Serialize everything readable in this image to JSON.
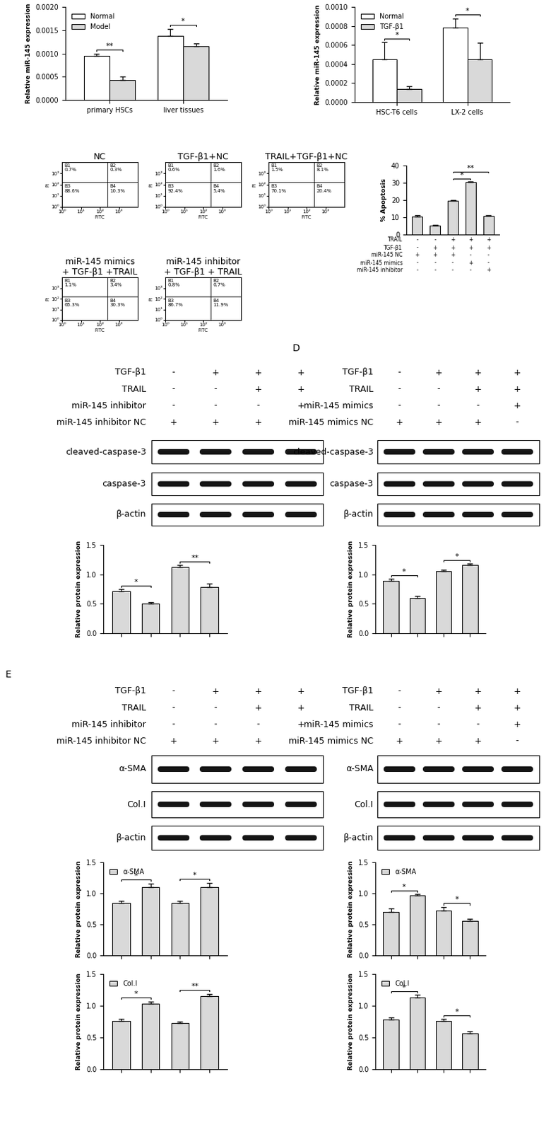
{
  "chart_data": [
    {
      "type": "bar",
      "ylabel": "Relative miR-145 expression",
      "categories": [
        "primary HSCs",
        "liver tissues"
      ],
      "series": [
        {
          "name": "Normal",
          "color": "#ffffff",
          "values": [
            0.00095,
            0.00138
          ],
          "errors": [
            5e-05,
            0.00015
          ]
        },
        {
          "name": "Model",
          "color": "#d9d9d9",
          "values": [
            0.00043,
            0.00115
          ],
          "errors": [
            7e-05,
            6e-05
          ]
        }
      ],
      "ylim": [
        0,
        0.002
      ],
      "yticks": [
        {
          "value": 0,
          "label": "0.0000"
        },
        {
          "value": 0.0005,
          "label": "0.0005"
        },
        {
          "value": 0.001,
          "label": "0.0010"
        },
        {
          "value": 0.0015,
          "label": "0.0015"
        },
        {
          "value": 0.002,
          "label": "0.0020"
        }
      ],
      "legend": "upper left",
      "significance": [
        "**",
        "*"
      ]
    },
    {
      "type": "bar",
      "ylabel": "Relative miR-145 expression",
      "categories": [
        "HSC-T6 cells",
        "LX-2 cells"
      ],
      "series": [
        {
          "name": "Normal",
          "color": "#ffffff",
          "values": [
            0.00045,
            0.00078
          ],
          "errors": [
            0.00018,
            0.0001
          ]
        },
        {
          "name": "TGF-β1",
          "color": "#d9d9d9",
          "values": [
            0.00014,
            0.00045
          ],
          "errors": [
            3e-05,
            0.00017
          ]
        }
      ],
      "ylim": [
        0,
        0.001
      ],
      "yticks": [
        {
          "value": 0,
          "label": "0.0000"
        },
        {
          "value": 0.0002,
          "label": "0.0002"
        },
        {
          "value": 0.0004,
          "label": "0.0004"
        },
        {
          "value": 0.0006,
          "label": "0.0006"
        },
        {
          "value": 0.0008,
          "label": "0.0008"
        },
        {
          "value": 0.001,
          "label": "0.0010"
        }
      ],
      "legend": "upper left",
      "significance": [
        "*",
        "*"
      ]
    },
    {
      "type": "bar",
      "ylabel": "% Apoptosis",
      "color": "#d9d9d9",
      "values": [
        10.5,
        5.2,
        19.5,
        30.3,
        10.8
      ],
      "errors": [
        0.8,
        0.5,
        0.5,
        0.7,
        0.6
      ],
      "ylim": [
        0,
        40
      ],
      "yticks": [
        0,
        10,
        20,
        30,
        40
      ],
      "conditions": [
        {
          "name": "TRAIL",
          "signs": [
            "-",
            "-",
            "+",
            "+",
            "+"
          ]
        },
        {
          "name": "TGF-β1",
          "signs": [
            "-",
            "+",
            "+",
            "+",
            "+"
          ]
        },
        {
          "name": "miR-145 NC",
          "signs": [
            "+",
            "+",
            "+",
            "-",
            "-"
          ]
        },
        {
          "name": "miR-145 mimics",
          "signs": [
            "-",
            "-",
            "-",
            "+",
            "-"
          ]
        },
        {
          "name": "miR-145 inhibitor",
          "signs": [
            "-",
            "-",
            "-",
            "-",
            "+"
          ]
        }
      ],
      "significance": [
        {
          "bars": [
            2,
            3
          ],
          "label": "*"
        },
        {
          "bars": [
            2,
            4
          ],
          "label": "**"
        }
      ]
    }
  ],
  "flow_cytometry": {
    "type": "quadrant",
    "log": true,
    "xlabel": "FITC",
    "ylabel": "PI",
    "xlim": [
      1,
      10000
    ],
    "ylim": [
      1,
      10000
    ],
    "xticks": [
      {
        "value": 1,
        "label": "10⁰"
      },
      {
        "value": 10,
        "label": "10¹"
      },
      {
        "value": 100,
        "label": "10²"
      },
      {
        "value": 1000,
        "label": "10³"
      }
    ],
    "yticks": [
      {
        "value": 1,
        "label": "10⁰"
      },
      {
        "value": 10,
        "label": "10¹"
      },
      {
        "value": 100,
        "label": "10²"
      },
      {
        "value": 1000,
        "label": "10³"
      }
    ],
    "plots": [
      {
        "title": "NC",
        "quadrants": [
          {
            "name": "B1",
            "value": 0.7,
            "label": "0.7%"
          },
          {
            "name": "B2",
            "value": 0.3,
            "label": "0.3%"
          },
          {
            "name": "B3",
            "value": 88.6,
            "label": "88.6%"
          },
          {
            "name": "B4",
            "value": 10.3,
            "label": "10.3%"
          }
        ]
      },
      {
        "title": "TGF-β1+NC",
        "quadrants": [
          {
            "name": "B1",
            "value": 0.6,
            "label": "0.6%"
          },
          {
            "name": "B2",
            "value": 1.6,
            "label": "1.6%"
          },
          {
            "name": "B3",
            "value": 92.4,
            "label": "92.4%"
          },
          {
            "name": "B4",
            "value": 5.4,
            "label": "5.4%"
          }
        ]
      },
      {
        "title": "TRAIL+TGF-β1+NC",
        "quadrants": [
          {
            "name": "B1",
            "value": 1.5,
            "label": "1.5%"
          },
          {
            "name": "B2",
            "value": 8.1,
            "label": "8.1%"
          },
          {
            "name": "B3",
            "value": 70.1,
            "label": "70.1%"
          },
          {
            "name": "B4",
            "value": 20.4,
            "label": "20.4%"
          }
        ]
      },
      {
        "title": "miR-145 mimics\n+ TGF-β1 +TRAIL",
        "quadrants": [
          {
            "name": "B1",
            "value": 1.1,
            "label": "1.1%"
          },
          {
            "name": "B2",
            "value": 3.4,
            "label": "3.4%"
          },
          {
            "name": "B3",
            "value": 65.3,
            "label": "65.3%"
          },
          {
            "name": "B4",
            "value": 30.3,
            "label": "30.3%"
          }
        ]
      },
      {
        "title": "miR-145 inhibitor\n+ TGF-β1 + TRAIL",
        "quadrants": [
          {
            "name": "B1",
            "value": 0.8,
            "label": "0.8%"
          },
          {
            "name": "B2",
            "value": 0.7,
            "label": "0.7%"
          },
          {
            "name": "B3",
            "value": 86.7,
            "label": "86.7%"
          },
          {
            "name": "B4",
            "value": 11.9,
            "label": "11.9%"
          }
        ]
      }
    ]
  },
  "western_blots": [
    {
      "conditions": [
        {
          "name": "TGF-β1",
          "signs": [
            "-",
            "+",
            "+",
            "+"
          ]
        },
        {
          "name": "TRAIL",
          "signs": [
            "-",
            "-",
            "+",
            "+"
          ]
        },
        {
          "name": "miR-145 inhibitor",
          "signs": [
            "-",
            "-",
            "-",
            "+"
          ]
        },
        {
          "name": "miR-145 inhibitor NC",
          "signs": [
            "+",
            "+",
            "+",
            "-"
          ]
        }
      ],
      "bands": [
        "cleaved-caspase-3",
        "caspase-3",
        "β-actin"
      ],
      "charts": [
        {
          "type": "bar",
          "ylabel": "Relative protein expression",
          "series": [
            {
              "color": "#d9d9d9",
              "values": [
                0.72,
                0.5,
                1.12,
                0.79
              ],
              "errors": [
                0.03,
                0.03,
                0.04,
                0.05
              ]
            }
          ],
          "ylim": [
            0,
            1.5
          ],
          "yticks": [
            {
              "value": 0,
              "label": "0.0"
            },
            {
              "value": 0.5,
              "label": "0.5"
            },
            {
              "value": 1.0,
              "label": "1.0"
            },
            {
              "value": 1.5,
              "label": "1.5"
            }
          ],
          "tick_labels": "y",
          "significance": [
            {
              "bars": [
                0,
                1
              ],
              "label": "*"
            },
            {
              "bars": [
                2,
                3
              ],
              "label": "**"
            }
          ]
        }
      ]
    },
    {
      "panel": "D",
      "conditions": [
        {
          "name": "TGF-β1",
          "signs": [
            "-",
            "+",
            "+",
            "+"
          ]
        },
        {
          "name": "TRAIL",
          "signs": [
            "-",
            "-",
            "+",
            "+"
          ]
        },
        {
          "name": "miR-145 mimics",
          "signs": [
            "-",
            "-",
            "-",
            "+"
          ]
        },
        {
          "name": "miR-145 mimics NC",
          "signs": [
            "+",
            "+",
            "+",
            "-"
          ]
        }
      ],
      "bands": [
        "cleaved-caspase-3",
        "caspase-3",
        "β-actin"
      ],
      "charts": [
        {
          "type": "bar",
          "ylabel": "Relative protein expression",
          "series": [
            {
              "color": "#d9d9d9",
              "values": [
                0.89,
                0.6,
                1.05,
                1.16
              ],
              "errors": [
                0.04,
                0.03,
                0.03,
                0.02
              ]
            }
          ],
          "ylim": [
            0,
            1.5
          ],
          "yticks": [
            {
              "value": 0,
              "label": "0.0"
            },
            {
              "value": 0.5,
              "label": "0.5"
            },
            {
              "value": 1.0,
              "label": "1.0"
            },
            {
              "value": 1.5,
              "label": "1.5"
            }
          ],
          "tick_labels": "y",
          "significance": [
            {
              "bars": [
                0,
                1
              ],
              "label": "*"
            },
            {
              "bars": [
                2,
                3
              ],
              "label": "*"
            }
          ]
        }
      ]
    },
    {
      "panel": "E",
      "conditions": [
        {
          "name": "TGF-β1",
          "signs": [
            "-",
            "+",
            "+",
            "+"
          ]
        },
        {
          "name": "TRAIL",
          "signs": [
            "-",
            "-",
            "+",
            "+"
          ]
        },
        {
          "name": "miR-145 inhibitor",
          "signs": [
            "-",
            "-",
            "-",
            "+"
          ]
        },
        {
          "name": "miR-145 inhibitor NC",
          "signs": [
            "+",
            "+",
            "+",
            "-"
          ]
        }
      ],
      "bands": [
        "α-SMA",
        "Col.I",
        "β-actin"
      ],
      "charts": [
        {
          "type": "bar",
          "ylabel": "Relative protein expression",
          "series": [
            {
              "name": "α-SMA",
              "color": "#d9d9d9",
              "values": [
                0.85,
                1.1,
                0.85,
                1.1
              ],
              "errors": [
                0.03,
                0.06,
                0.03,
                0.07
              ]
            }
          ],
          "ylim": [
            0,
            1.5
          ],
          "yticks": [
            {
              "value": 0,
              "label": "0.0"
            },
            {
              "value": 0.5,
              "label": "0.5"
            },
            {
              "value": 1.0,
              "label": "1.0"
            },
            {
              "value": 1.5,
              "label": "1.5"
            }
          ],
          "tick_labels": "y",
          "legend": "upper left",
          "significance": [
            {
              "bars": [
                0,
                1
              ],
              "label": "*"
            },
            {
              "bars": [
                2,
                3
              ],
              "label": "*"
            }
          ]
        },
        {
          "type": "bar",
          "ylabel": "Relative protein expression",
          "series": [
            {
              "name": "Col.I",
              "color": "#d9d9d9",
              "values": [
                0.76,
                1.03,
                0.73,
                1.15
              ],
              "errors": [
                0.03,
                0.04,
                0.02,
                0.04
              ]
            }
          ],
          "ylim": [
            0,
            1.5
          ],
          "yticks": [
            {
              "value": 0,
              "label": "0.0"
            },
            {
              "value": 0.5,
              "label": "0.5"
            },
            {
              "value": 1.0,
              "label": "1.0"
            },
            {
              "value": 1.5,
              "label": "1.5"
            }
          ],
          "tick_labels": "y",
          "legend": "upper left",
          "significance": [
            {
              "bars": [
                0,
                1
              ],
              "label": "*"
            },
            {
              "bars": [
                2,
                3
              ],
              "label": "**"
            }
          ]
        }
      ]
    },
    {
      "conditions": [
        {
          "name": "TGF-β1",
          "signs": [
            "-",
            "+",
            "+",
            "+"
          ]
        },
        {
          "name": "TRAIL",
          "signs": [
            "-",
            "-",
            "+",
            "+"
          ]
        },
        {
          "name": "miR-145 mimics",
          "signs": [
            "-",
            "-",
            "-",
            "+"
          ]
        },
        {
          "name": "miR-145 mimics NC",
          "signs": [
            "+",
            "+",
            "+",
            "-"
          ]
        }
      ],
      "bands": [
        "α-SMA",
        "Col.I",
        "β-actin"
      ],
      "charts": [
        {
          "type": "bar",
          "ylabel": "Relative protein expression",
          "series": [
            {
              "name": "α-SMA",
              "color": "#d9d9d9",
              "values": [
                0.7,
                0.97,
                0.72,
                0.56
              ],
              "errors": [
                0.06,
                0.02,
                0.06,
                0.03
              ]
            }
          ],
          "ylim": [
            0,
            1.5
          ],
          "yticks": [
            {
              "value": 0,
              "label": "0.0"
            },
            {
              "value": 0.5,
              "label": "0.5"
            },
            {
              "value": 1.0,
              "label": "1.0"
            },
            {
              "value": 1.5,
              "label": "1.5"
            }
          ],
          "tick_labels": "y",
          "legend": "upper left",
          "significance": [
            {
              "bars": [
                0,
                1
              ],
              "label": "*"
            },
            {
              "bars": [
                2,
                3
              ],
              "label": "*"
            }
          ]
        },
        {
          "type": "bar",
          "ylabel": "Relative protein expression",
          "series": [
            {
              "name": "Col.I",
              "color": "#d9d9d9",
              "values": [
                0.78,
                1.13,
                0.76,
                0.56
              ],
              "errors": [
                0.04,
                0.04,
                0.03,
                0.04
              ]
            }
          ],
          "ylim": [
            0,
            1.5
          ],
          "yticks": [
            {
              "value": 0,
              "label": "0.0"
            },
            {
              "value": 0.5,
              "label": "0.5"
            },
            {
              "value": 1.0,
              "label": "1.0"
            },
            {
              "value": 1.5,
              "label": "1.5"
            }
          ],
          "tick_labels": "y",
          "legend": "upper left",
          "significance": [
            {
              "bars": [
                0,
                1
              ],
              "label": "*"
            },
            {
              "bars": [
                2,
                3
              ],
              "label": "*"
            }
          ]
        }
      ]
    }
  ]
}
